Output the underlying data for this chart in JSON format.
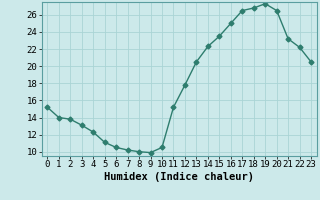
{
  "x": [
    0,
    1,
    2,
    3,
    4,
    5,
    6,
    7,
    8,
    9,
    10,
    11,
    12,
    13,
    14,
    15,
    16,
    17,
    18,
    19,
    20,
    21,
    22,
    23
  ],
  "y": [
    15.2,
    14.0,
    13.8,
    13.1,
    12.3,
    11.1,
    10.5,
    10.2,
    10.0,
    9.9,
    10.5,
    15.2,
    17.8,
    20.5,
    22.3,
    23.5,
    25.0,
    26.5,
    26.8,
    27.3,
    26.5,
    23.2,
    22.2,
    20.5
  ],
  "line_color": "#2e7d6e",
  "marker": "D",
  "marker_size": 2.5,
  "bg_color": "#cce9ea",
  "grid_color": "#aad4d5",
  "xlabel": "Humidex (Indice chaleur)",
  "xlim": [
    -0.5,
    23.5
  ],
  "ylim": [
    9.5,
    27.5
  ],
  "yticks": [
    10,
    12,
    14,
    16,
    18,
    20,
    22,
    24,
    26
  ],
  "xticks": [
    0,
    1,
    2,
    3,
    4,
    5,
    6,
    7,
    8,
    9,
    10,
    11,
    12,
    13,
    14,
    15,
    16,
    17,
    18,
    19,
    20,
    21,
    22,
    23
  ],
  "xlabel_fontsize": 7.5,
  "tick_fontsize": 6.5,
  "linewidth": 1.0
}
